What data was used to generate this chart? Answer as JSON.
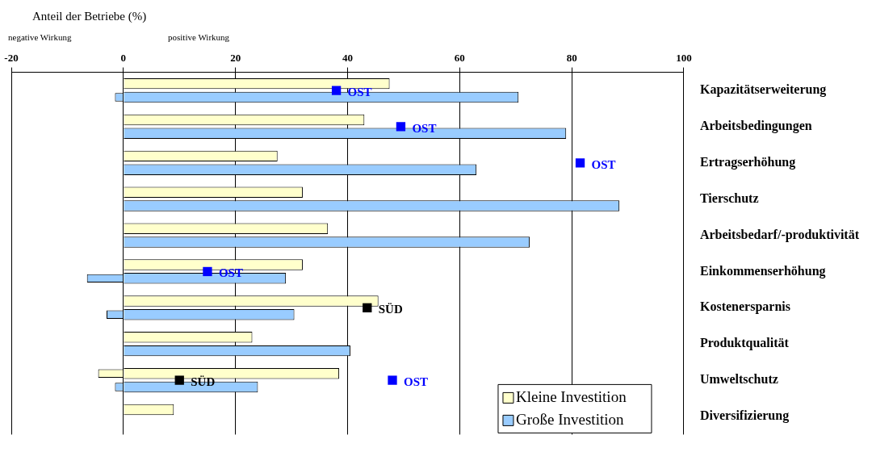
{
  "chart_data": {
    "type": "bar",
    "orientation": "horizontal",
    "marker": "square",
    "xlabel": "Anteil der Betriebe (%)",
    "annotations": [
      "negative Wirkung",
      "positive Wirkung"
    ],
    "categories": [
      "Kapazitätserweiterung",
      "Arbeitsbedingungen",
      "Ertragserhöhung",
      "Tierschutz",
      "Arbeitsbedarf/-produktivität",
      "Einkommenserhöhung",
      "Kostenersparnis",
      "Produktqualität",
      "Umweltschutz",
      "Diversifizierung"
    ],
    "series": [
      {
        "name": "Kleine Investition",
        "color": "#ffffcc",
        "values": [
          47.5,
          43,
          27.5,
          32,
          36.5,
          32,
          45.5,
          23,
          38.5,
          9
        ]
      },
      {
        "color": "#ffffcc",
        "base": [
          null,
          null,
          null,
          null,
          null,
          null,
          null,
          null,
          0,
          null
        ],
        "values": [
          null,
          null,
          null,
          null,
          null,
          null,
          null,
          null,
          -4.5,
          null
        ]
      },
      {
        "name": "Große Investition",
        "color": "#99ccff",
        "values": [
          70.5,
          79,
          63,
          88.5,
          72.5,
          29,
          30.5,
          40.5,
          24,
          null
        ]
      },
      {
        "color": "#99ccff",
        "base": [
          0,
          null,
          null,
          null,
          null,
          0,
          0,
          null,
          0,
          null
        ],
        "values": [
          -1.5,
          null,
          null,
          null,
          null,
          -6.5,
          -3,
          null,
          -1.5,
          null
        ]
      },
      {
        "type": "scatter",
        "name": "OST",
        "color": "#0000ff",
        "values": [
          38,
          49.5,
          81.5,
          null,
          null,
          15,
          null,
          null,
          48,
          null
        ]
      },
      {
        "type": "scatter",
        "name": "SÜD",
        "color": "#000000",
        "values": [
          null,
          null,
          null,
          null,
          null,
          null,
          43.5,
          null,
          10,
          null
        ]
      }
    ],
    "xlim": [
      -20,
      100
    ],
    "xticks": [
      -20,
      0,
      20,
      40,
      60,
      80,
      100
    ],
    "grid": "x",
    "legend": "bottom right"
  }
}
